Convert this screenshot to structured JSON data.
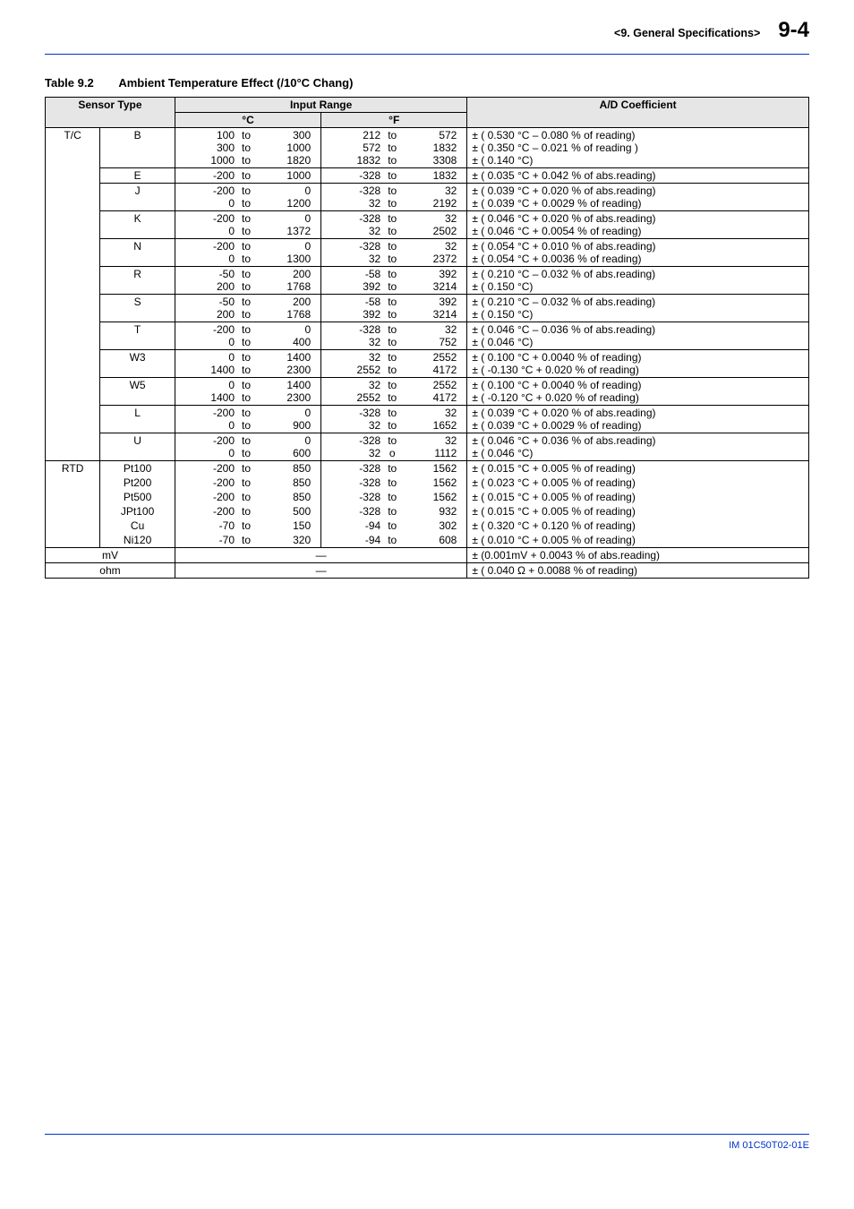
{
  "header": {
    "section": "<9.  General Specifications>",
    "page": "9-4"
  },
  "tableTitle": {
    "number": "Table 9.2",
    "text": "Ambient Temperature Effect (/10°C Chang)"
  },
  "columns": {
    "sensor": "Sensor Type",
    "input": "Input Range",
    "degC": "°C",
    "degF": "°F",
    "coeff": "A/D Coefficient"
  },
  "groups": [
    {
      "cat": "T/C",
      "rows": [
        {
          "sub": "B",
          "c": [
            [
              "100",
              "to",
              "300"
            ],
            [
              "300",
              "to",
              "1000"
            ],
            [
              "1000",
              "to",
              "1820"
            ]
          ],
          "f": [
            [
              "212",
              "to",
              "572"
            ],
            [
              "572",
              "to",
              "1832"
            ],
            [
              "1832",
              "to",
              "3308"
            ]
          ],
          "coeff": [
            "± ( 0.530 °C – 0.080 % of reading)",
            "± ( 0.350 °C – 0.021 % of reading )",
            "± ( 0.140 °C)"
          ]
        },
        {
          "sub": "E",
          "c": [
            [
              "-200",
              "to",
              "1000"
            ]
          ],
          "f": [
            [
              "-328",
              "to",
              "1832"
            ]
          ],
          "coeff": [
            "± ( 0.035 °C + 0.042 % of abs.reading)"
          ]
        },
        {
          "sub": "J",
          "c": [
            [
              "-200",
              "to",
              "0"
            ],
            [
              "0",
              "to",
              "1200"
            ]
          ],
          "f": [
            [
              "-328",
              "to",
              "32"
            ],
            [
              "32",
              "to",
              "2192"
            ]
          ],
          "coeff": [
            "± ( 0.039 °C + 0.020 % of abs.reading)",
            "± ( 0.039 °C + 0.0029 % of reading)"
          ]
        },
        {
          "sub": "K",
          "c": [
            [
              "-200",
              "to",
              "0"
            ],
            [
              "0",
              "to",
              "1372"
            ]
          ],
          "f": [
            [
              "-328",
              "to",
              "32"
            ],
            [
              "32",
              "to",
              "2502"
            ]
          ],
          "coeff": [
            "± ( 0.046 °C + 0.020 % of abs.reading)",
            "± ( 0.046 °C + 0.0054 % of reading)"
          ]
        },
        {
          "sub": "N",
          "c": [
            [
              "-200",
              "to",
              "0"
            ],
            [
              "0",
              "to",
              "1300"
            ]
          ],
          "f": [
            [
              "-328",
              "to",
              "32"
            ],
            [
              "32",
              "to",
              "2372"
            ]
          ],
          "coeff": [
            "± ( 0.054 °C + 0.010 % of abs.reading)",
            "± ( 0.054 °C + 0.0036 % of reading)"
          ]
        },
        {
          "sub": "R",
          "c": [
            [
              "-50",
              "to",
              "200"
            ],
            [
              "200",
              "to",
              "1768"
            ]
          ],
          "f": [
            [
              "-58",
              "to",
              "392"
            ],
            [
              "392",
              "to",
              "3214"
            ]
          ],
          "coeff": [
            "± ( 0.210 °C – 0.032 % of abs.reading)",
            "± ( 0.150 °C)"
          ]
        },
        {
          "sub": "S",
          "c": [
            [
              "-50",
              "to",
              "200"
            ],
            [
              "200",
              "to",
              "1768"
            ]
          ],
          "f": [
            [
              "-58",
              "to",
              "392"
            ],
            [
              "392",
              "to",
              "3214"
            ]
          ],
          "coeff": [
            "± ( 0.210 °C – 0.032 % of abs.reading)",
            "± ( 0.150 °C)"
          ]
        },
        {
          "sub": "T",
          "c": [
            [
              "-200",
              "to",
              "0"
            ],
            [
              "0",
              "to",
              "400"
            ]
          ],
          "f": [
            [
              "-328",
              "to",
              "32"
            ],
            [
              "32",
              "to",
              "752"
            ]
          ],
          "coeff": [
            "± ( 0.046 °C – 0.036 % of abs.reading)",
            "± ( 0.046 °C)"
          ]
        },
        {
          "sub": "W3",
          "c": [
            [
              "0",
              "to",
              "1400"
            ],
            [
              "1400",
              "to",
              "2300"
            ]
          ],
          "f": [
            [
              "32",
              "to",
              "2552"
            ],
            [
              "2552",
              "to",
              "4172"
            ]
          ],
          "coeff": [
            "± ( 0.100 °C + 0.0040 % of reading)",
            "± ( -0.130 °C + 0.020 % of reading)"
          ]
        },
        {
          "sub": "W5",
          "c": [
            [
              "0",
              "to",
              "1400"
            ],
            [
              "1400",
              "to",
              "2300"
            ]
          ],
          "f": [
            [
              "32",
              "to",
              "2552"
            ],
            [
              "2552",
              "to",
              "4172"
            ]
          ],
          "coeff": [
            "± ( 0.100 °C + 0.0040 % of reading)",
            "± ( -0.120 °C + 0.020 % of reading)"
          ]
        },
        {
          "sub": "L",
          "c": [
            [
              "-200",
              "to",
              "0"
            ],
            [
              "0",
              "to",
              "900"
            ]
          ],
          "f": [
            [
              "-328",
              "to",
              "32"
            ],
            [
              "32",
              "to",
              "1652"
            ]
          ],
          "coeff": [
            "± ( 0.039 °C + 0.020 % of abs.reading)",
            "± ( 0.039 °C + 0.0029 % of reading)"
          ]
        },
        {
          "sub": "U",
          "c": [
            [
              "-200",
              "to",
              "0"
            ],
            [
              "0",
              "to",
              "600"
            ]
          ],
          "f": [
            [
              "-328",
              "to",
              "32"
            ],
            [
              "32",
              "o",
              "1112"
            ]
          ],
          "coeff": [
            "± ( 0.046 °C + 0.036 % of abs.reading)",
            "± ( 0.046 °C)"
          ]
        }
      ]
    },
    {
      "cat": "RTD",
      "rows": [
        {
          "sub": "Pt100",
          "c": [
            [
              "-200",
              "to",
              "850"
            ]
          ],
          "f": [
            [
              "-328",
              "to",
              "1562"
            ]
          ],
          "coeff": [
            "± ( 0.015 °C + 0.005 % of reading)"
          ],
          "merge": true
        },
        {
          "sub": "Pt200",
          "c": [
            [
              "-200",
              "to",
              "850"
            ]
          ],
          "f": [
            [
              "-328",
              "to",
              "1562"
            ]
          ],
          "coeff": [
            "± ( 0.023 °C + 0.005 % of reading)"
          ],
          "merge": true
        },
        {
          "sub": "Pt500",
          "c": [
            [
              "-200",
              "to",
              "850"
            ]
          ],
          "f": [
            [
              "-328",
              "to",
              "1562"
            ]
          ],
          "coeff": [
            "± ( 0.015 °C + 0.005 % of reading)"
          ],
          "merge": true
        },
        {
          "sub": "JPt100",
          "c": [
            [
              "-200",
              "to",
              "500"
            ]
          ],
          "f": [
            [
              "-328",
              "to",
              "932"
            ]
          ],
          "coeff": [
            "± ( 0.015 °C + 0.005 % of reading)"
          ],
          "merge": true
        },
        {
          "sub": "Cu",
          "c": [
            [
              "-70",
              "to",
              "150"
            ]
          ],
          "f": [
            [
              "-94",
              "to",
              "302"
            ]
          ],
          "coeff": [
            "± ( 0.320 °C + 0.120 % of reading)"
          ],
          "merge": true
        },
        {
          "sub": "Ni120",
          "c": [
            [
              "-70",
              "to",
              "320"
            ]
          ],
          "f": [
            [
              "-94",
              "to",
              "608"
            ]
          ],
          "coeff": [
            "± ( 0.010 °C + 0.005 % of reading)"
          ]
        }
      ]
    }
  ],
  "tail": [
    {
      "label": "mV",
      "dash": "—",
      "coeff": "± (0.001mV + 0.0043 % of abs.reading)"
    },
    {
      "label": "ohm",
      "dash": "—",
      "coeff": "± ( 0.040 Ω +  0.0088 % of reading)"
    }
  ],
  "footer": "IM 01C50T02-01E"
}
